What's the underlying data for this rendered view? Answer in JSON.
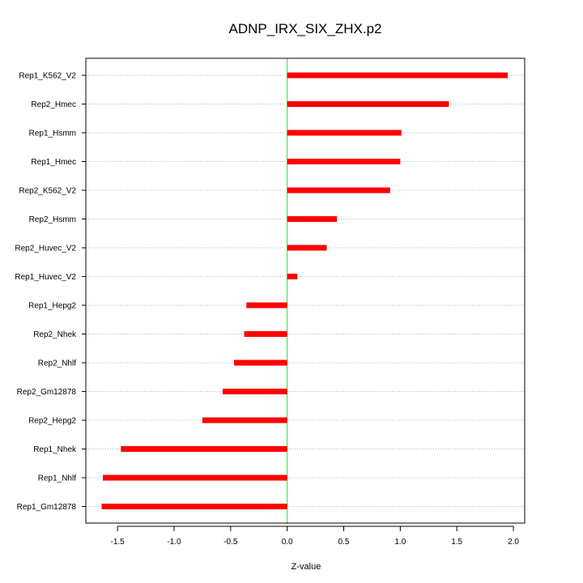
{
  "chart_data": {
    "type": "bar",
    "orientation": "horizontal",
    "title": "ADNP_IRX_SIX_ZHX.p2",
    "xlabel": "Z-value",
    "ylabel": "",
    "xlim": [
      -1.78,
      2.1
    ],
    "x_ticks": [
      -1.5,
      -1.0,
      -0.5,
      0.0,
      0.5,
      1.0,
      1.5,
      2.0
    ],
    "x_tick_labels": [
      "-1.5",
      "-1.0",
      "-0.5",
      "0.0",
      "0.5",
      "1.0",
      "1.5",
      "2.0"
    ],
    "categories": [
      "Rep1_K562_V2",
      "Rep2_Hmec",
      "Rep1_Hsmm",
      "Rep1_Hmec",
      "Rep2_K562_V2",
      "Rep2_Hsmm",
      "Rep2_Huvec_V2",
      "Rep1_Huvec_V2",
      "Rep1_Hepg2",
      "Rep2_Nhek",
      "Rep2_Nhlf",
      "Rep2_Gm12878",
      "Rep2_Hepg2",
      "Rep1_Nhek",
      "Rep1_Nhlf",
      "Rep1_Gm12878"
    ],
    "values": [
      1.95,
      1.43,
      1.01,
      1.0,
      0.91,
      0.44,
      0.35,
      0.09,
      -0.36,
      -0.38,
      -0.47,
      -0.57,
      -0.75,
      -1.47,
      -1.63,
      -1.64
    ],
    "grid": "horizontal dotted",
    "reference_line": 0.0,
    "colors": {
      "bar": "#ff0000",
      "reference_line": "#33dd33",
      "grid": "#bbbbbb",
      "frame": "#000000"
    }
  }
}
